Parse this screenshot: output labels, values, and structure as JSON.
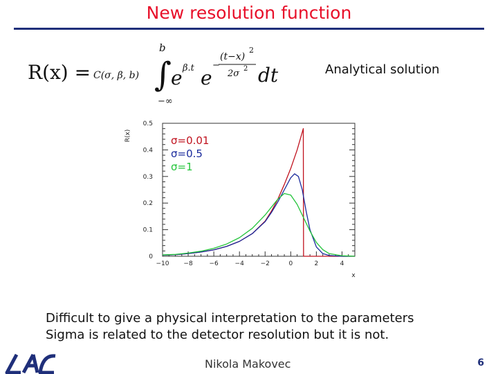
{
  "slide": {
    "title": "New resolution function",
    "annotation": "Analytical solution",
    "body_lines": [
      "Difficult to give a physical interpretation to the parameters",
      "Sigma is related to the detector resolution but it is not."
    ],
    "author": "Nikola Makovec",
    "page_number": "6",
    "title_color": "#e8102a",
    "rule_color": "#1f2f7a"
  },
  "formula": {
    "lhs": "R(x) =",
    "coefficient": "C(σ, β, b)",
    "upper_limit": "b",
    "lower_limit": "−∞",
    "exp1_base": "e",
    "exp1_power": "β.t",
    "exp2_base": "e",
    "exp2_numerator": "(t−x)",
    "exp2_numerator_power": "2",
    "exp2_denominator": "2σ",
    "exp2_denominator_power": "2",
    "exp2_sign": "−",
    "differential": "dt"
  },
  "chart_data": {
    "type": "line",
    "title": "",
    "xlabel": "x",
    "ylabel": "R(x)",
    "xlim": [
      -10,
      5
    ],
    "ylim": [
      0,
      0.5
    ],
    "xticks": [
      -10,
      -8,
      -6,
      -4,
      -2,
      0,
      2,
      4
    ],
    "xtick_labels": [
      "−10",
      "−8",
      "−6",
      "−4",
      "−2",
      "0",
      "2",
      "4"
    ],
    "yticks": [
      0,
      0.1,
      0.2,
      0.3,
      0.4,
      0.5
    ],
    "ytick_labels": [
      "0",
      "0.1",
      "0.2",
      "0.3",
      "0.4",
      "0.5"
    ],
    "legend_placement": "top-left",
    "series": [
      {
        "name": "σ=0.01",
        "color": "#c0121e",
        "x": [
          -10,
          -9,
          -8,
          -7,
          -6,
          -5,
          -4,
          -3,
          -2,
          -1.5,
          -1,
          -0.5,
          0,
          0.5,
          0.98,
          1.0,
          1.02,
          1.5,
          2,
          3,
          4,
          5
        ],
        "y": [
          0.004,
          0.006,
          0.01,
          0.016,
          0.024,
          0.037,
          0.056,
          0.085,
          0.132,
          0.17,
          0.215,
          0.27,
          0.33,
          0.4,
          0.48,
          0.0,
          0.0,
          0.0,
          0.0,
          0.0,
          0.0,
          0.0
        ]
      },
      {
        "name": "σ=0.5",
        "color": "#1a2a9c",
        "x": [
          -10,
          -9,
          -8,
          -7,
          -6,
          -5,
          -4,
          -3,
          -2,
          -1.5,
          -1,
          -0.5,
          0,
          0.3,
          0.6,
          0.9,
          1.2,
          1.5,
          2,
          2.5,
          3,
          4,
          5
        ],
        "y": [
          0.004,
          0.006,
          0.01,
          0.016,
          0.024,
          0.037,
          0.056,
          0.085,
          0.13,
          0.165,
          0.205,
          0.25,
          0.295,
          0.31,
          0.3,
          0.25,
          0.17,
          0.1,
          0.035,
          0.01,
          0.003,
          0.0,
          0.0
        ]
      },
      {
        "name": "σ=1",
        "color": "#23c43a",
        "x": [
          -10,
          -9,
          -8,
          -7,
          -6,
          -5,
          -4,
          -3,
          -2,
          -1.5,
          -1,
          -0.5,
          0,
          0.5,
          1,
          1.5,
          2,
          2.5,
          3,
          4,
          5
        ],
        "y": [
          0.005,
          0.007,
          0.012,
          0.019,
          0.03,
          0.046,
          0.07,
          0.105,
          0.155,
          0.185,
          0.215,
          0.236,
          0.23,
          0.195,
          0.145,
          0.095,
          0.052,
          0.025,
          0.01,
          0.002,
          0.0
        ]
      }
    ]
  }
}
